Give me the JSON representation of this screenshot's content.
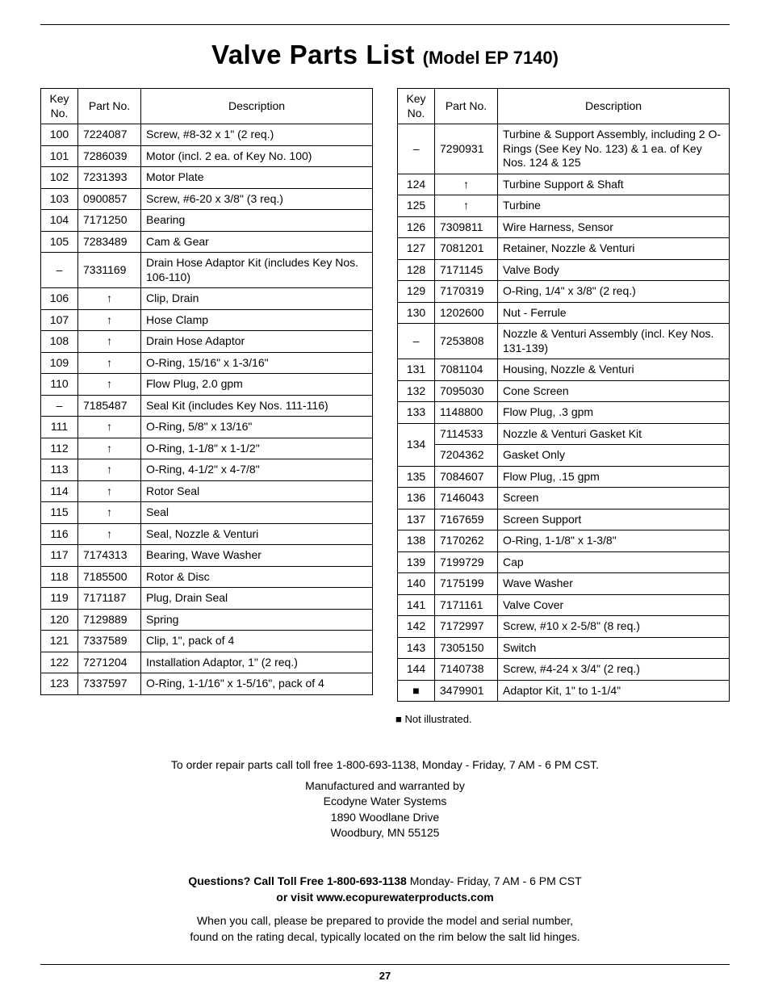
{
  "title": {
    "main": "Valve Parts List ",
    "sub": "(Model EP 7140)"
  },
  "columns": {
    "key": "Key No.",
    "part": "Part No.",
    "desc": "Description"
  },
  "symbols": {
    "arrow": "↑",
    "square": "■",
    "dash": "–"
  },
  "legend": "■  Not illustrated.",
  "left": [
    {
      "key": "100",
      "part": "7224087",
      "desc": "Screw, #8-32 x 1\" (2 req.)"
    },
    {
      "key": "101",
      "part": "7286039",
      "desc": "Motor (incl. 2 ea. of Key No. 100)"
    },
    {
      "key": "102",
      "part": "7231393",
      "desc": "Motor Plate"
    },
    {
      "key": "103",
      "part": "0900857",
      "desc": "Screw, #6-20 x 3/8\" (3 req.)"
    },
    {
      "key": "104",
      "part": "7171250",
      "desc": "Bearing"
    },
    {
      "key": "105",
      "part": "7283489",
      "desc": "Cam & Gear"
    },
    {
      "key": "–",
      "part": "7331169",
      "desc": "Drain Hose Adaptor Kit (includes Key Nos. 106-110)"
    },
    {
      "key": "106",
      "part": "↑",
      "partCenter": true,
      "desc": "Clip, Drain"
    },
    {
      "key": "107",
      "part": "↑",
      "partCenter": true,
      "desc": "Hose Clamp"
    },
    {
      "key": "108",
      "part": "↑",
      "partCenter": true,
      "desc": "Drain Hose Adaptor"
    },
    {
      "key": "109",
      "part": "↑",
      "partCenter": true,
      "desc": "O-Ring, 15/16\" x 1-3/16\""
    },
    {
      "key": "110",
      "part": "↑",
      "partCenter": true,
      "desc": "Flow Plug, 2.0 gpm"
    },
    {
      "key": "–",
      "part": "7185487",
      "desc": "Seal Kit (includes Key Nos. 111-116)"
    },
    {
      "key": "111",
      "part": "↑",
      "partCenter": true,
      "desc": "O-Ring, 5/8\" x 13/16\""
    },
    {
      "key": "112",
      "part": "↑",
      "partCenter": true,
      "desc": "O-Ring, 1-1/8\" x 1-1/2\""
    },
    {
      "key": "113",
      "part": "↑",
      "partCenter": true,
      "desc": "O-Ring, 4-1/2\" x 4-7/8\""
    },
    {
      "key": "114",
      "part": "↑",
      "partCenter": true,
      "desc": "Rotor Seal"
    },
    {
      "key": "115",
      "part": "↑",
      "partCenter": true,
      "desc": "Seal"
    },
    {
      "key": "116",
      "part": "↑",
      "partCenter": true,
      "desc": "Seal, Nozzle & Venturi"
    },
    {
      "key": "117",
      "part": "7174313",
      "desc": "Bearing, Wave Washer"
    },
    {
      "key": "118",
      "part": "7185500",
      "desc": "Rotor & Disc"
    },
    {
      "key": "119",
      "part": "7171187",
      "desc": "Plug, Drain Seal"
    },
    {
      "key": "120",
      "part": "7129889",
      "desc": "Spring"
    },
    {
      "key": "121",
      "part": "7337589",
      "desc": "Clip, 1\", pack of 4"
    },
    {
      "key": "122",
      "part": "7271204",
      "desc": "Installation Adaptor, 1\" (2 req.)"
    },
    {
      "key": "123",
      "part": "7337597",
      "desc": "O-Ring, 1-1/16\" x 1-5/16\", pack of 4"
    }
  ],
  "right": [
    {
      "key": "–",
      "part": "7290931",
      "desc": "Turbine & Support Assembly, including 2 O-Rings (See Key No. 123) & 1 ea. of Key Nos. 124 & 125"
    },
    {
      "key": "124",
      "part": "↑",
      "partCenter": true,
      "desc": "Turbine Support & Shaft"
    },
    {
      "key": "125",
      "part": "↑",
      "partCenter": true,
      "desc": "Turbine"
    },
    {
      "key": "126",
      "part": "7309811",
      "desc": "Wire Harness, Sensor"
    },
    {
      "key": "127",
      "part": "7081201",
      "desc": "Retainer, Nozzle & Venturi"
    },
    {
      "key": "128",
      "part": "7171145",
      "desc": "Valve Body"
    },
    {
      "key": "129",
      "part": "7170319",
      "desc": "O-Ring, 1/4\" x 3/8\" (2 req.)"
    },
    {
      "key": "130",
      "part": "1202600",
      "desc": "Nut - Ferrule"
    },
    {
      "key": "–",
      "part": "7253808",
      "desc": "Nozzle & Venturi Assembly (incl. Key Nos. 131-139)"
    },
    {
      "key": "131",
      "part": "7081104",
      "desc": "Housing, Nozzle & Venturi"
    },
    {
      "key": "132",
      "part": "7095030",
      "desc": "Cone Screen"
    },
    {
      "key": "133",
      "part": "1148800",
      "desc": "Flow Plug, .3 gpm"
    },
    {
      "key": "134",
      "rowspan": 2,
      "part": "7114533",
      "desc": "Nozzle & Venturi Gasket Kit"
    },
    {
      "keySkip": true,
      "part": "7204362",
      "desc": "Gasket Only"
    },
    {
      "key": "135",
      "part": "7084607",
      "desc": "Flow Plug, .15 gpm"
    },
    {
      "key": "136",
      "part": "7146043",
      "desc": "Screen"
    },
    {
      "key": "137",
      "part": "7167659",
      "desc": "Screen Support"
    },
    {
      "key": "138",
      "part": "7170262",
      "desc": "O-Ring, 1-1/8\" x 1-3/8\""
    },
    {
      "key": "139",
      "part": "7199729",
      "desc": "Cap"
    },
    {
      "key": "140",
      "part": "7175199",
      "desc": "Wave Washer"
    },
    {
      "key": "141",
      "part": "7171161",
      "desc": "Valve Cover"
    },
    {
      "key": "142",
      "part": "7172997",
      "desc": "Screw, #10 x 2-5/8\" (8 req.)"
    },
    {
      "key": "143",
      "part": "7305150",
      "desc": "Switch"
    },
    {
      "key": "144",
      "part": "7140738",
      "desc": "Screw, #4-24 x 3/4\" (2 req.)"
    },
    {
      "key": "■",
      "part": "3479901",
      "desc": "Adaptor Kit, 1\" to 1-1/4\""
    }
  ],
  "footer": {
    "order": "To order repair parts call toll free 1-800-693-1138, Monday - Friday, 7 AM - 6 PM CST.",
    "mfg1": "Manufactured and warranted by",
    "mfg2": "Ecodyne Water Systems",
    "mfg3": "1890 Woodlane Drive",
    "mfg4": "Woodbury, MN 55125",
    "q1bold": "Questions? Call Toll Free 1-800-693-1138",
    "q1rest": "  Monday- Friday, 7 AM - 6 PM CST",
    "q2bold": "or visit www.ecopurewaterproducts.com",
    "note1": "When you call, please be prepared to provide the model and serial number,",
    "note2": "found on the rating decal, typically located on the rim below the salt lid hinges.",
    "pagenum": "27"
  }
}
